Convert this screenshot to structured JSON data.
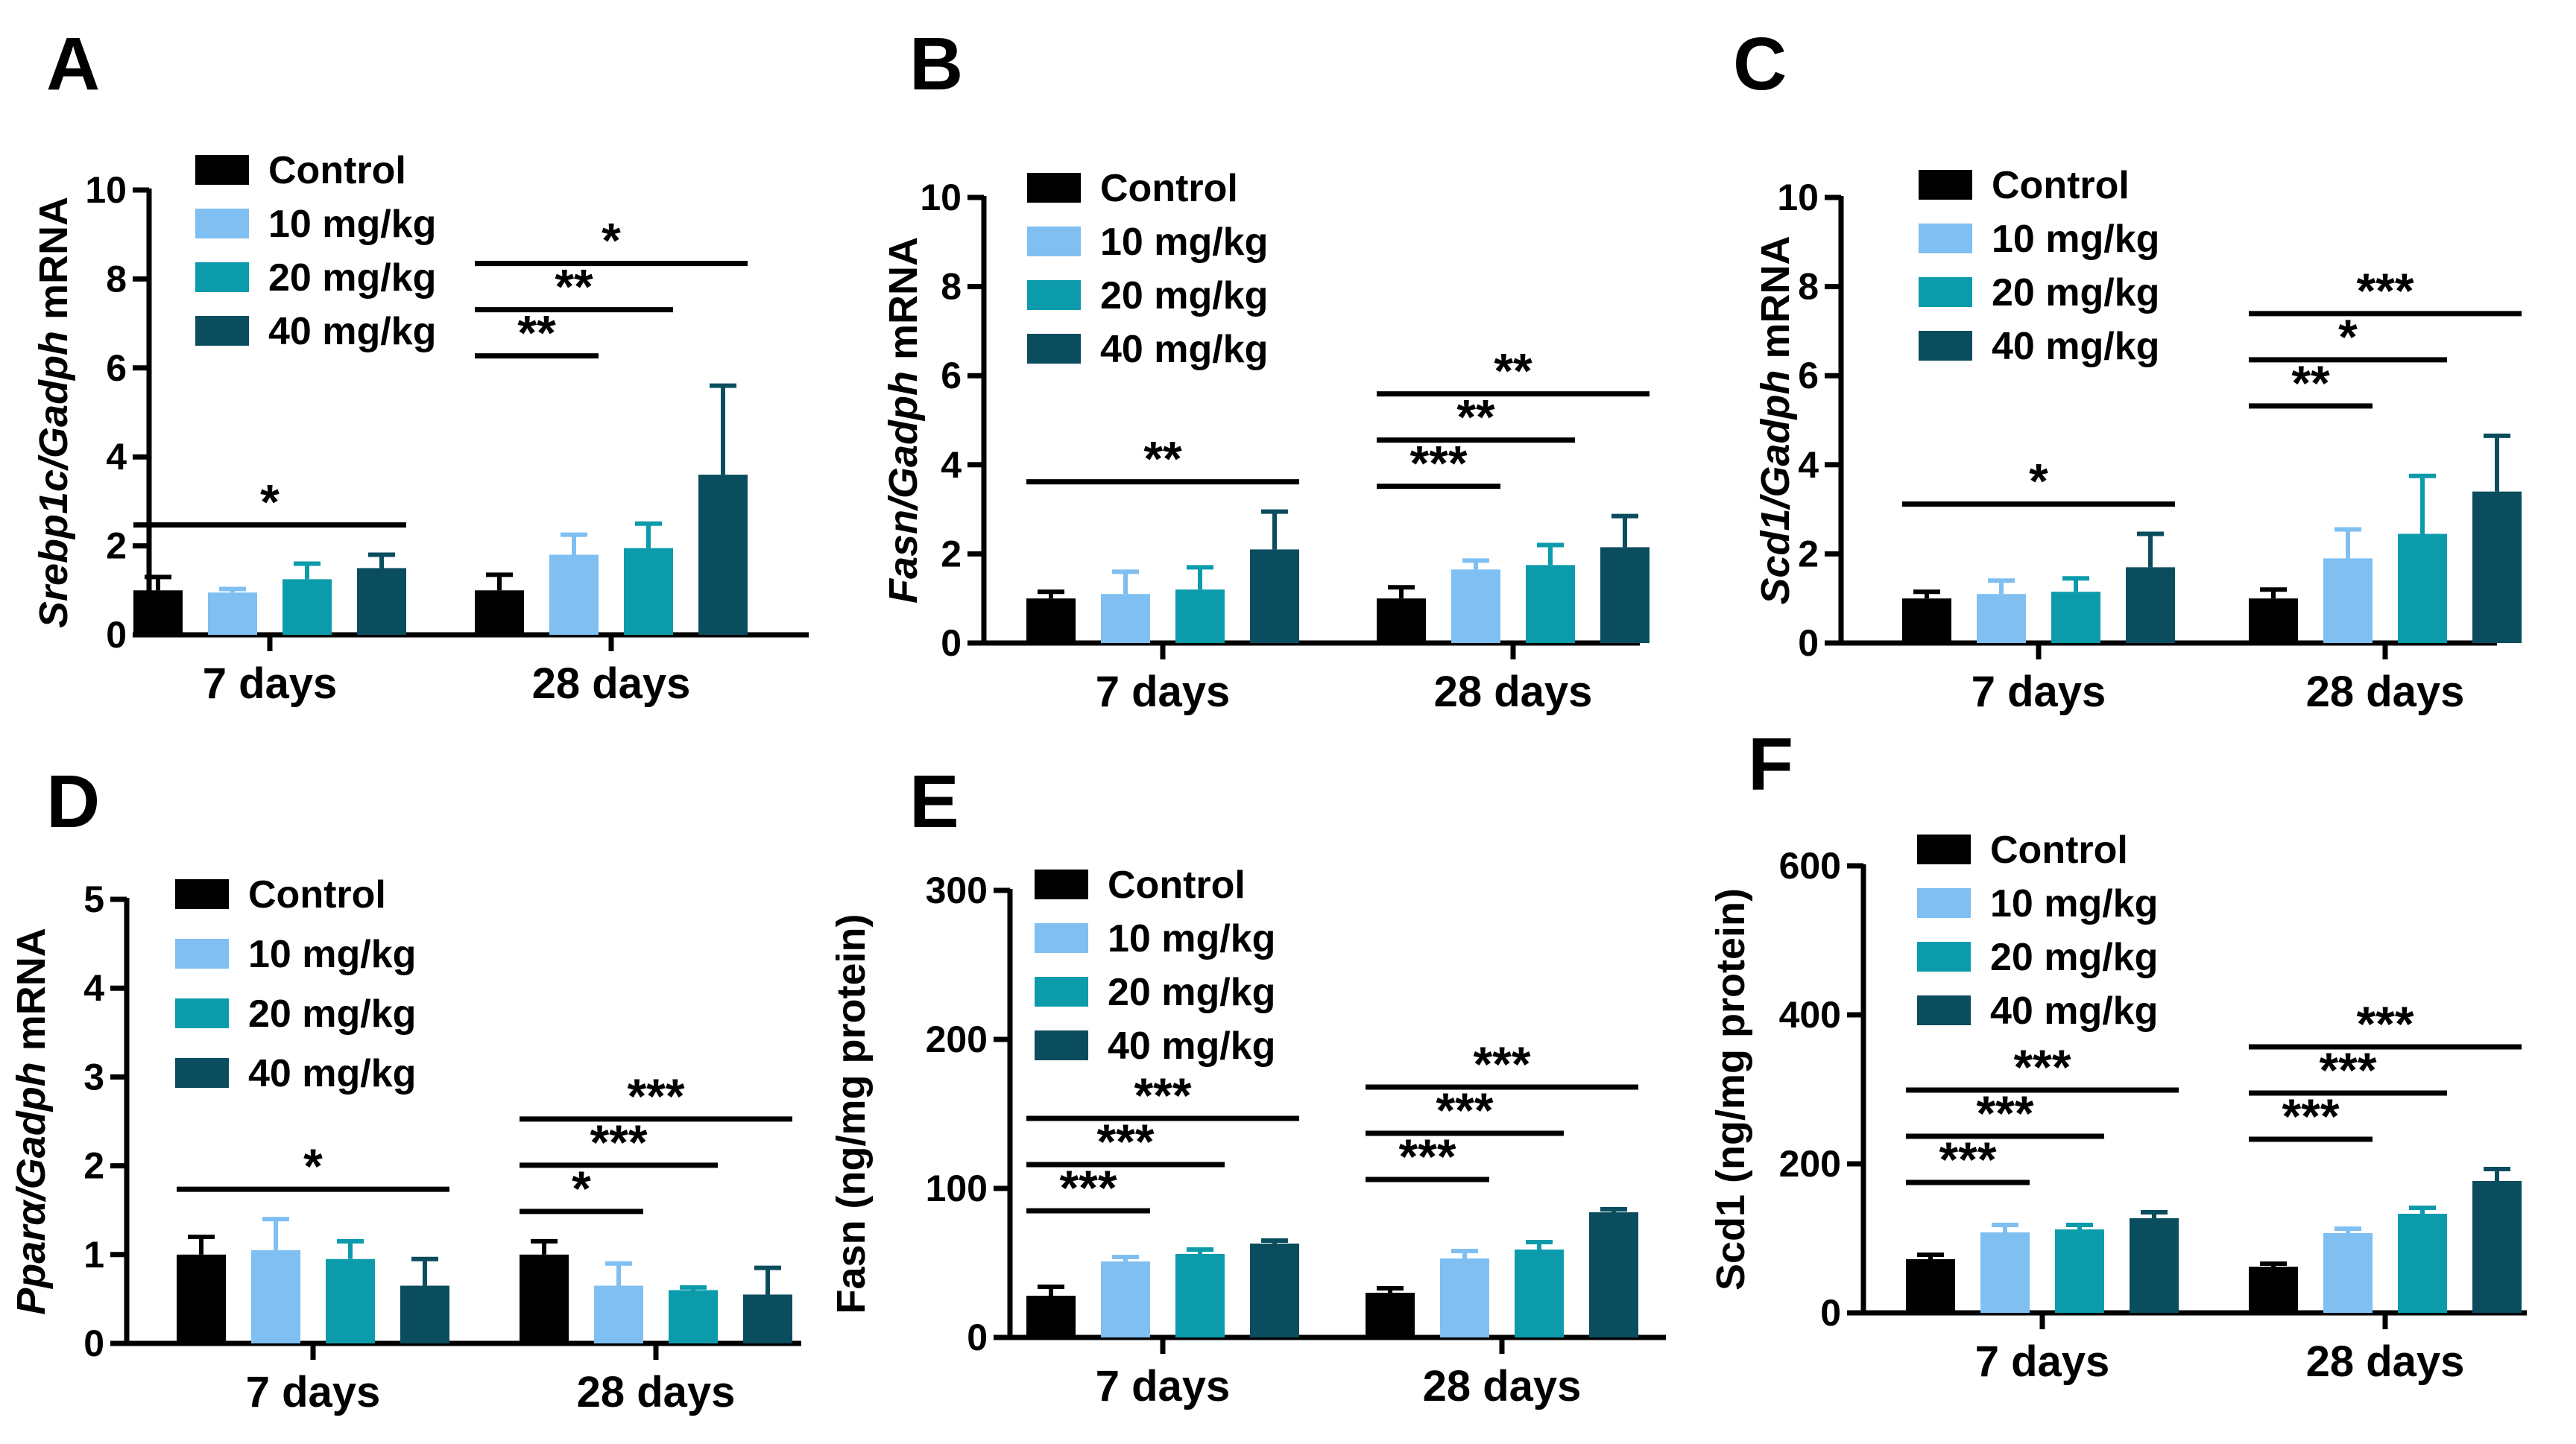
{
  "colors": {
    "Control": "#000000",
    "10 mg/kg": "#7fbff2",
    "20 mg/kg": "#0c9bab",
    "40 mg/kg": "#0a4d5e"
  },
  "chart_data": [
    {
      "type": "bar",
      "panel": "A",
      "ylabel_parts": [
        "Srebp1c/Gadph",
        " mRNA"
      ],
      "ylabel_italic": [
        true,
        false
      ],
      "categories": [
        "7 days",
        "28 days"
      ],
      "ylim": [
        0,
        10
      ],
      "yticks": [
        "0",
        "2",
        "4",
        "6",
        "8",
        "10"
      ],
      "legend": [
        "Control",
        "10 mg/kg",
        "20 mg/kg",
        "40 mg/kg"
      ],
      "series": [
        {
          "name": "Control",
          "values": [
            1.0,
            1.0
          ],
          "errors": [
            0.3,
            0.35
          ]
        },
        {
          "name": "10 mg/kg",
          "values": [
            0.95,
            1.8
          ],
          "errors": [
            0.08,
            0.45
          ]
        },
        {
          "name": "20 mg/kg",
          "values": [
            1.25,
            1.95
          ],
          "errors": [
            0.35,
            0.55
          ]
        },
        {
          "name": "40 mg/kg",
          "values": [
            1.5,
            3.6
          ],
          "errors": [
            0.3,
            2.0
          ]
        }
      ],
      "significance": [
        {
          "category": 0,
          "from": 0,
          "to": 3,
          "label": "*"
        },
        {
          "category": 1,
          "from": 0,
          "to": 1,
          "label": "**"
        },
        {
          "category": 1,
          "from": 0,
          "to": 2,
          "label": "**"
        },
        {
          "category": 1,
          "from": 0,
          "to": 3,
          "label": "*"
        }
      ]
    },
    {
      "type": "bar",
      "panel": "B",
      "ylabel_parts": [
        "Fasn/Gadph",
        " mRNA"
      ],
      "ylabel_italic": [
        true,
        false
      ],
      "categories": [
        "7 days",
        "28 days"
      ],
      "ylim": [
        0,
        10
      ],
      "yticks": [
        "0",
        "2",
        "4",
        "6",
        "8",
        "10"
      ],
      "legend": [
        "Control",
        "10 mg/kg",
        "20 mg/kg",
        "40 mg/kg"
      ],
      "series": [
        {
          "name": "Control",
          "values": [
            1.0,
            1.0
          ],
          "errors": [
            0.15,
            0.25
          ]
        },
        {
          "name": "10 mg/kg",
          "values": [
            1.1,
            1.65
          ],
          "errors": [
            0.5,
            0.2
          ]
        },
        {
          "name": "20 mg/kg",
          "values": [
            1.2,
            1.75
          ],
          "errors": [
            0.5,
            0.45
          ]
        },
        {
          "name": "40 mg/kg",
          "values": [
            2.1,
            2.15
          ],
          "errors": [
            0.85,
            0.7
          ]
        }
      ],
      "significance": [
        {
          "category": 0,
          "from": 0,
          "to": 3,
          "label": "**"
        },
        {
          "category": 1,
          "from": 0,
          "to": 1,
          "label": "***"
        },
        {
          "category": 1,
          "from": 0,
          "to": 2,
          "label": "**"
        },
        {
          "category": 1,
          "from": 0,
          "to": 3,
          "label": "**"
        }
      ]
    },
    {
      "type": "bar",
      "panel": "C",
      "ylabel_parts": [
        "Scd1/Gadph",
        " mRNA"
      ],
      "ylabel_italic": [
        true,
        false
      ],
      "categories": [
        "7 days",
        "28 days"
      ],
      "ylim": [
        0,
        10
      ],
      "yticks": [
        "0",
        "2",
        "4",
        "6",
        "8",
        "10"
      ],
      "legend": [
        "Control",
        "10 mg/kg",
        "20 mg/kg",
        "40 mg/kg"
      ],
      "series": [
        {
          "name": "Control",
          "values": [
            1.0,
            1.0
          ],
          "errors": [
            0.15,
            0.2
          ]
        },
        {
          "name": "10 mg/kg",
          "values": [
            1.1,
            1.9
          ],
          "errors": [
            0.3,
            0.65
          ]
        },
        {
          "name": "20 mg/kg",
          "values": [
            1.15,
            2.45
          ],
          "errors": [
            0.3,
            1.3
          ]
        },
        {
          "name": "40 mg/kg",
          "values": [
            1.7,
            3.4
          ],
          "errors": [
            0.75,
            1.25
          ]
        }
      ],
      "significance": [
        {
          "category": 0,
          "from": 0,
          "to": 3,
          "label": "*"
        },
        {
          "category": 1,
          "from": 0,
          "to": 1,
          "label": "**"
        },
        {
          "category": 1,
          "from": 0,
          "to": 2,
          "label": "*"
        },
        {
          "category": 1,
          "from": 0,
          "to": 3,
          "label": "***"
        }
      ]
    },
    {
      "type": "bar",
      "panel": "D",
      "ylabel_parts": [
        "Pparα/Gadph",
        " mRNA"
      ],
      "ylabel_italic": [
        true,
        false
      ],
      "categories": [
        "7 days",
        "28 days"
      ],
      "ylim": [
        0,
        5
      ],
      "yticks": [
        "0",
        "1",
        "2",
        "3",
        "4",
        "5"
      ],
      "legend": [
        "Control",
        "10 mg/kg",
        "20 mg/kg",
        "40 mg/kg"
      ],
      "series": [
        {
          "name": "Control",
          "values": [
            1.0,
            1.0
          ],
          "errors": [
            0.2,
            0.15
          ]
        },
        {
          "name": "10 mg/kg",
          "values": [
            1.05,
            0.65
          ],
          "errors": [
            0.35,
            0.25
          ]
        },
        {
          "name": "20 mg/kg",
          "values": [
            0.95,
            0.6
          ],
          "errors": [
            0.2,
            0.03
          ]
        },
        {
          "name": "40 mg/kg",
          "values": [
            0.65,
            0.55
          ],
          "errors": [
            0.3,
            0.3
          ]
        }
      ],
      "significance": [
        {
          "category": 0,
          "from": 0,
          "to": 3,
          "label": "*"
        },
        {
          "category": 1,
          "from": 0,
          "to": 1,
          "label": "*"
        },
        {
          "category": 1,
          "from": 0,
          "to": 2,
          "label": "***"
        },
        {
          "category": 1,
          "from": 0,
          "to": 3,
          "label": "***"
        }
      ]
    },
    {
      "type": "bar",
      "panel": "E",
      "ylabel_parts": [
        "Fasn (ng/mg protein)"
      ],
      "ylabel_italic": [
        false
      ],
      "categories": [
        "7 days",
        "28 days"
      ],
      "ylim": [
        0,
        300
      ],
      "yticks": [
        "0",
        "100",
        "200",
        "300"
      ],
      "legend": [
        "Control",
        "10 mg/kg",
        "20 mg/kg",
        "40 mg/kg"
      ],
      "series": [
        {
          "name": "Control",
          "values": [
            28,
            30
          ],
          "errors": [
            6,
            3
          ]
        },
        {
          "name": "10 mg/kg",
          "values": [
            51,
            53
          ],
          "errors": [
            3,
            5
          ]
        },
        {
          "name": "20 mg/kg",
          "values": [
            56,
            59
          ],
          "errors": [
            3,
            5
          ]
        },
        {
          "name": "40 mg/kg",
          "values": [
            63,
            84
          ],
          "errors": [
            2,
            2
          ]
        }
      ],
      "significance": [
        {
          "category": 0,
          "from": 0,
          "to": 1,
          "label": "***"
        },
        {
          "category": 0,
          "from": 0,
          "to": 2,
          "label": "***"
        },
        {
          "category": 0,
          "from": 0,
          "to": 3,
          "label": "***"
        },
        {
          "category": 1,
          "from": 0,
          "to": 1,
          "label": "***"
        },
        {
          "category": 1,
          "from": 0,
          "to": 2,
          "label": "***"
        },
        {
          "category": 1,
          "from": 0,
          "to": 3,
          "label": "***"
        }
      ]
    },
    {
      "type": "bar",
      "panel": "F",
      "ylabel_parts": [
        "Scd1 (ng/mg protein)"
      ],
      "ylabel_italic": [
        false
      ],
      "categories": [
        "7 days",
        "28 days"
      ],
      "ylim": [
        0,
        600
      ],
      "yticks": [
        "0",
        "200",
        "400",
        "600"
      ],
      "legend": [
        "Control",
        "10 mg/kg",
        "20 mg/kg",
        "40 mg/kg"
      ],
      "series": [
        {
          "name": "Control",
          "values": [
            72,
            62
          ],
          "errors": [
            6,
            4
          ]
        },
        {
          "name": "10 mg/kg",
          "values": [
            108,
            107
          ],
          "errors": [
            10,
            6
          ]
        },
        {
          "name": "20 mg/kg",
          "values": [
            112,
            133
          ],
          "errors": [
            6,
            8
          ]
        },
        {
          "name": "40 mg/kg",
          "values": [
            127,
            177
          ],
          "errors": [
            8,
            16
          ]
        }
      ],
      "significance": [
        {
          "category": 0,
          "from": 0,
          "to": 1,
          "label": "***"
        },
        {
          "category": 0,
          "from": 0,
          "to": 2,
          "label": "***"
        },
        {
          "category": 0,
          "from": 0,
          "to": 3,
          "label": "***"
        },
        {
          "category": 1,
          "from": 0,
          "to": 1,
          "label": "***"
        },
        {
          "category": 1,
          "from": 0,
          "to": 2,
          "label": "***"
        },
        {
          "category": 1,
          "from": 0,
          "to": 3,
          "label": "***"
        }
      ]
    }
  ]
}
